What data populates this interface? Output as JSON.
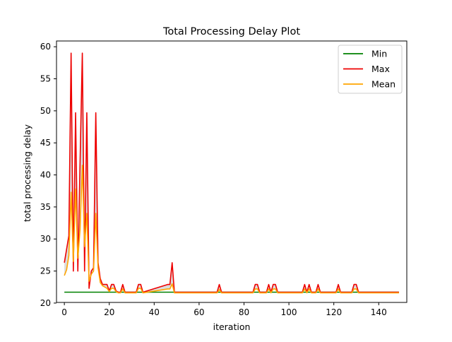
{
  "chart_data": {
    "type": "line",
    "title": "Total Processing Delay Plot",
    "xlabel": "iteration",
    "ylabel": "total processing delay",
    "xlim": [
      -3.5,
      152.5
    ],
    "ylim": [
      20.1,
      60.9
    ],
    "xticks": [
      0,
      20,
      40,
      60,
      80,
      100,
      120,
      140
    ],
    "yticks": [
      20,
      25,
      30,
      35,
      40,
      45,
      50,
      55,
      60
    ],
    "grid": false,
    "legend_position": "top-right",
    "band_color": "#c0c0c0",
    "series": [
      {
        "name": "Min",
        "color": "#008000",
        "points": [
          [
            0,
            21.7
          ],
          [
            149,
            21.7
          ]
        ]
      },
      {
        "name": "Max",
        "color": "#ee0000",
        "points": [
          [
            0,
            26.3
          ],
          [
            2,
            30.5
          ],
          [
            3,
            59.0
          ],
          [
            4,
            25.0
          ],
          [
            5,
            49.7
          ],
          [
            6,
            25.0
          ],
          [
            8,
            59.0
          ],
          [
            9,
            25.0
          ],
          [
            10,
            49.7
          ],
          [
            11,
            22.3
          ],
          [
            12,
            25.0
          ],
          [
            13,
            25.5
          ],
          [
            14,
            49.7
          ],
          [
            15,
            26.3
          ],
          [
            16,
            23.8
          ],
          [
            17,
            22.9
          ],
          [
            18,
            22.9
          ],
          [
            19,
            22.9
          ],
          [
            20,
            21.9
          ],
          [
            21,
            22.9
          ],
          [
            22,
            22.9
          ],
          [
            23,
            21.9
          ],
          [
            24,
            21.7
          ],
          [
            25,
            21.7
          ],
          [
            26,
            22.9
          ],
          [
            27,
            21.7
          ],
          [
            32,
            21.7
          ],
          [
            33,
            22.9
          ],
          [
            34,
            22.9
          ],
          [
            35,
            21.7
          ],
          [
            46,
            22.9
          ],
          [
            47,
            22.9
          ],
          [
            48,
            26.3
          ],
          [
            49,
            21.7
          ],
          [
            68,
            21.7
          ],
          [
            69,
            22.9
          ],
          [
            70,
            21.7
          ],
          [
            84,
            21.7
          ],
          [
            85,
            22.9
          ],
          [
            86,
            22.9
          ],
          [
            87,
            21.7
          ],
          [
            90,
            21.7
          ],
          [
            91,
            22.9
          ],
          [
            92,
            21.7
          ],
          [
            93,
            22.9
          ],
          [
            94,
            22.9
          ],
          [
            95,
            21.7
          ],
          [
            106,
            21.7
          ],
          [
            107,
            22.9
          ],
          [
            108,
            21.7
          ],
          [
            109,
            22.9
          ],
          [
            110,
            21.7
          ],
          [
            112,
            21.7
          ],
          [
            113,
            22.9
          ],
          [
            114,
            21.7
          ],
          [
            121,
            21.7
          ],
          [
            122,
            22.9
          ],
          [
            123,
            21.7
          ],
          [
            128,
            21.7
          ],
          [
            129,
            22.9
          ],
          [
            130,
            22.9
          ],
          [
            131,
            21.7
          ],
          [
            149,
            21.7
          ]
        ]
      },
      {
        "name": "Mean",
        "color": "#ffa500",
        "points": [
          [
            0,
            24.3
          ],
          [
            1,
            25.2
          ],
          [
            2,
            27.4
          ],
          [
            3,
            37.3
          ],
          [
            4,
            26.5
          ],
          [
            5,
            37.8
          ],
          [
            6,
            27.0
          ],
          [
            7,
            31.5
          ],
          [
            8,
            41.5
          ],
          [
            9,
            28.8
          ],
          [
            10,
            34.0
          ],
          [
            11,
            23.4
          ],
          [
            12,
            24.5
          ],
          [
            13,
            25.0
          ],
          [
            14,
            34.0
          ],
          [
            15,
            25.5
          ],
          [
            16,
            23.2
          ],
          [
            17,
            22.7
          ],
          [
            18,
            22.5
          ],
          [
            19,
            22.3
          ],
          [
            20,
            21.8
          ],
          [
            21,
            22.3
          ],
          [
            22,
            22.3
          ],
          [
            23,
            21.8
          ],
          [
            24,
            21.6
          ],
          [
            25,
            21.6
          ],
          [
            26,
            22.2
          ],
          [
            27,
            21.6
          ],
          [
            32,
            21.6
          ],
          [
            33,
            22.3
          ],
          [
            34,
            22.3
          ],
          [
            35,
            21.6
          ],
          [
            46,
            22.2
          ],
          [
            47,
            22.2
          ],
          [
            48,
            23.0
          ],
          [
            49,
            21.6
          ],
          [
            68,
            21.6
          ],
          [
            69,
            22.1
          ],
          [
            70,
            21.6
          ],
          [
            84,
            21.6
          ],
          [
            85,
            22.2
          ],
          [
            86,
            22.2
          ],
          [
            87,
            21.6
          ],
          [
            90,
            21.6
          ],
          [
            91,
            22.2
          ],
          [
            92,
            21.6
          ],
          [
            93,
            22.2
          ],
          [
            94,
            22.2
          ],
          [
            95,
            21.6
          ],
          [
            106,
            21.6
          ],
          [
            107,
            22.2
          ],
          [
            108,
            21.6
          ],
          [
            109,
            22.2
          ],
          [
            110,
            21.6
          ],
          [
            112,
            21.6
          ],
          [
            113,
            22.2
          ],
          [
            114,
            21.6
          ],
          [
            121,
            21.6
          ],
          [
            122,
            22.2
          ],
          [
            123,
            21.6
          ],
          [
            128,
            21.6
          ],
          [
            129,
            22.2
          ],
          [
            130,
            22.2
          ],
          [
            131,
            21.6
          ],
          [
            149,
            21.6
          ]
        ]
      }
    ]
  }
}
